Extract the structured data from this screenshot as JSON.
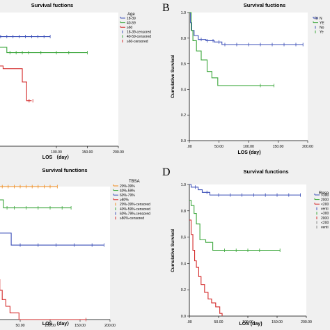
{
  "chart_data": [
    {
      "id": "A",
      "type": "line",
      "title": "Survival fuctions",
      "xlabel": "LOS （day）",
      "ylabel": "",
      "xlim": [
        0,
        200
      ],
      "ylim": [
        0,
        1
      ],
      "xticks": [
        "100.00",
        "150.00",
        "200.00"
      ],
      "xtick_values": [
        100,
        150,
        200
      ],
      "yticks": [],
      "ytick_values": [],
      "legend": {
        "title": "Age",
        "position": "top-right",
        "entries": [
          "18-39",
          "40-59",
          "≥60",
          "18-39-censored",
          "40-59-censored",
          "≥60-censored"
        ]
      },
      "series": [
        {
          "name": "18-39",
          "color": "#3b4fb8",
          "step": [
            [
              0,
              1
            ],
            [
              2,
              0.82
            ],
            [
              90,
              0.82
            ]
          ],
          "censor": [
            10,
            20,
            30,
            40,
            50,
            60,
            70,
            80,
            90
          ]
        },
        {
          "name": "40-59",
          "color": "#3aa63a",
          "step": [
            [
              0,
              1
            ],
            [
              2,
              0.78
            ],
            [
              8,
              0.74
            ],
            [
              20,
              0.7
            ],
            [
              150,
              0.7
            ]
          ],
          "censor": [
            25,
            35,
            45,
            55,
            75,
            100,
            120,
            150
          ]
        },
        {
          "name": "≥60",
          "color": "#d42a2a",
          "step": [
            [
              0,
              1
            ],
            [
              3,
              0.65
            ],
            [
              8,
              0.6
            ],
            [
              14,
              0.58
            ],
            [
              45,
              0.48
            ],
            [
              52,
              0.34
            ],
            [
              60,
              0.34
            ]
          ],
          "censor": [
            56,
            62
          ]
        }
      ]
    },
    {
      "id": "B",
      "type": "line",
      "title": "Survival fuctions",
      "xlabel": "LOS (day)",
      "ylabel": "Cumulative Survival",
      "xlim": [
        0,
        200
      ],
      "ylim": [
        0,
        1
      ],
      "xticks": [
        ".00",
        "50.00",
        "100.00",
        "150.00",
        "200.00"
      ],
      "xtick_values": [
        0,
        50,
        100,
        150,
        200
      ],
      "yticks": [
        "0.0",
        "0.2",
        "0.4",
        "0.6",
        "0.8",
        "1.0"
      ],
      "ytick_values": [
        0,
        0.2,
        0.4,
        0.6,
        0.8,
        1.0
      ],
      "legend": {
        "title": "In",
        "position": "top-right",
        "entries": [
          "N",
          "YE",
          "No",
          "Ye"
        ]
      },
      "series": [
        {
          "name": "N",
          "color": "#3b4fb8",
          "step": [
            [
              0,
              1
            ],
            [
              2,
              0.92
            ],
            [
              4,
              0.86
            ],
            [
              8,
              0.82
            ],
            [
              15,
              0.79
            ],
            [
              28,
              0.78
            ],
            [
              42,
              0.77
            ],
            [
              55,
              0.75
            ],
            [
              192,
              0.75
            ]
          ],
          "censor": [
            20,
            30,
            40,
            50,
            60,
            80,
            100,
            120,
            140,
            160,
            180,
            192
          ]
        },
        {
          "name": "YE",
          "color": "#3aa63a",
          "step": [
            [
              0,
              1
            ],
            [
              3,
              0.86
            ],
            [
              6,
              0.78
            ],
            [
              12,
              0.7
            ],
            [
              20,
              0.63
            ],
            [
              30,
              0.54
            ],
            [
              38,
              0.49
            ],
            [
              48,
              0.43
            ],
            [
              143,
              0.43
            ]
          ],
          "censor": [
            120,
            143
          ]
        }
      ]
    },
    {
      "id": "C",
      "type": "line",
      "title": "Survival functions",
      "xlabel": "LOS （day）",
      "ylabel": "",
      "xlim": [
        0,
        200
      ],
      "ylim": [
        0,
        1
      ],
      "xticks": [
        "50.00",
        "100.00",
        "150.00",
        "200.00"
      ],
      "xtick_values": [
        50,
        100,
        150,
        200
      ],
      "yticks": [],
      "ytick_values": [],
      "legend": {
        "title": "TBSA",
        "position": "top-right",
        "entries": [
          "20%-39%",
          "40%-59%",
          "60%-79%",
          "≥80%",
          "20%-39%-censored",
          "40%-59%-censored",
          "60%-79%-censored",
          "≥80%-censored"
        ]
      },
      "series": [
        {
          "name": "20%-39%",
          "color": "#f08a1a",
          "step": [
            [
              0,
              1
            ],
            [
              112,
              1
            ]
          ],
          "censor": [
            10,
            20,
            30,
            40,
            50,
            60,
            70,
            80,
            90,
            100,
            112
          ]
        },
        {
          "name": "40%-59%",
          "color": "#3aa63a",
          "step": [
            [
              0,
              0.92
            ],
            [
              5,
              0.9
            ],
            [
              22,
              0.84
            ],
            [
              135,
              0.84
            ]
          ],
          "censor": [
            28,
            40,
            60,
            80,
            100,
            120,
            135
          ]
        },
        {
          "name": "60%-79%",
          "color": "#3b4fb8",
          "step": [
            [
              0,
              0.68
            ],
            [
              8,
              0.65
            ],
            [
              35,
              0.56
            ],
            [
              190,
              0.56
            ]
          ],
          "censor": [
            50,
            80,
            110,
            140,
            170,
            190
          ]
        },
        {
          "name": "≥80%",
          "color": "#d42a2a",
          "step": [
            [
              0,
              0.45
            ],
            [
              12,
              0.3
            ],
            [
              16,
              0.22
            ],
            [
              20,
              0.15
            ],
            [
              26,
              0.1
            ],
            [
              33,
              0.05
            ],
            [
              48,
              0
            ],
            [
              160,
              0
            ]
          ],
          "censor": [
            160
          ]
        }
      ]
    },
    {
      "id": "D",
      "type": "line",
      "title": "Survival functions",
      "xlabel": "LOS (day)",
      "ylabel": "Cumulative Survival",
      "xlim": [
        0,
        200
      ],
      "ylim": [
        0,
        1
      ],
      "xticks": [
        ".00",
        "50.00",
        "100.00",
        "150.00",
        "200.00"
      ],
      "xtick_values": [
        0,
        50,
        100,
        150,
        200
      ],
      "yticks": [
        "0.0",
        "0.2",
        "0.4",
        "0.6",
        "0.8",
        "1.0"
      ],
      "ytick_values": [
        0,
        0.2,
        0.4,
        0.6,
        0.8,
        1.0
      ],
      "legend": {
        "title": "Resp",
        "position": "top-right",
        "entries": [
          ">300",
          "2000",
          "<200",
          "venti",
          "+300",
          "2000",
          "<200",
          "venti"
        ]
      },
      "series": [
        {
          "name": ">300",
          "color": "#3b4fb8",
          "step": [
            [
              0,
              1
            ],
            [
              3,
              0.98
            ],
            [
              15,
              0.96
            ],
            [
              22,
              0.94
            ],
            [
              35,
              0.92
            ],
            [
              190,
              0.92
            ]
          ],
          "censor": [
            10,
            30,
            50,
            70,
            90,
            110,
            130,
            150,
            170,
            190
          ]
        },
        {
          "name": "2000",
          "color": "#3aa63a",
          "step": [
            [
              0,
              0.88
            ],
            [
              3,
              0.84
            ],
            [
              8,
              0.78
            ],
            [
              12,
              0.7
            ],
            [
              18,
              0.58
            ],
            [
              28,
              0.56
            ],
            [
              40,
              0.5
            ],
            [
              155,
              0.5
            ]
          ],
          "censor": [
            60,
            80,
            100,
            120,
            155
          ]
        },
        {
          "name": "<200",
          "color": "#d42a2a",
          "step": [
            [
              0,
              0.73
            ],
            [
              3,
              0.62
            ],
            [
              6,
              0.5
            ],
            [
              9,
              0.42
            ],
            [
              12,
              0.37
            ],
            [
              16,
              0.3
            ],
            [
              20,
              0.24
            ],
            [
              26,
              0.18
            ],
            [
              32,
              0.13
            ],
            [
              38,
              0.1
            ],
            [
              45,
              0.07
            ],
            [
              52,
              0.02
            ],
            [
              56,
              0
            ]
          ],
          "censor": []
        }
      ]
    }
  ],
  "panel_letters": [
    "B",
    "D"
  ]
}
